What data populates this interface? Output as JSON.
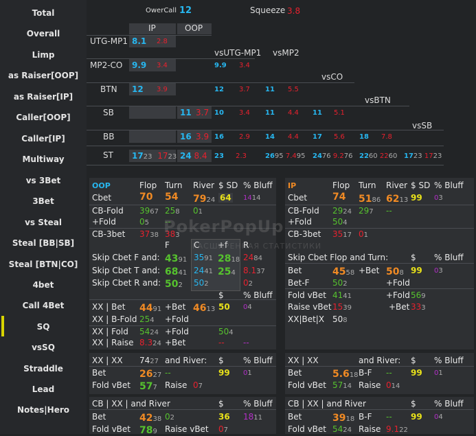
{
  "sidebar": {
    "items": [
      "Total",
      "Overall",
      "Limp",
      "as Raiser[OOP]",
      "as Raiser[IP]",
      "Caller[OOP]",
      "Caller[IP]",
      "Multiway",
      "vs 3Bet",
      "3Bet",
      "vs Steal",
      "Steal [BB|SB]",
      "Steal [BTN|CO]",
      "4bet",
      "Call 4Bet",
      "SQ",
      "vsSQ",
      "Straddle",
      "Lead",
      "Notes|Hero"
    ],
    "selected": "SQ"
  },
  "top": {
    "overcall_label": "OwerCall",
    "overcall_val": "12",
    "squeeze_label": "Squeeze",
    "squeeze_val": "3.8"
  },
  "ip_oop": {
    "ip": "IP",
    "oop": "OOP"
  },
  "positions": [
    "UTG-MP1",
    "MP2-CO",
    "BTN",
    "SB",
    "BB",
    "ST"
  ],
  "vs_headers": [
    "vsUTG-MP1",
    "vsMP2",
    "vsCO",
    "vsBTN",
    "vsSB"
  ],
  "grid": {
    "utg_ip": [
      "8.1",
      "2.8"
    ],
    "mp2_ip": [
      "9.9",
      "3.4"
    ],
    "mp2_vs1": [
      "9.9",
      "3.4"
    ],
    "btn_ip": [
      "12",
      "3.9"
    ],
    "btn_vs1": [
      "12",
      "3.7"
    ],
    "btn_vs2": [
      "11",
      "5.5"
    ],
    "sb_oop": [
      "11",
      "3.7"
    ],
    "sb_vs1": [
      "10",
      "3.4"
    ],
    "sb_vs2": [
      "11",
      "4.4"
    ],
    "sb_vs3": [
      "11",
      "5.1"
    ],
    "bb_oop": [
      "16",
      "3.9"
    ],
    "bb_vs1": [
      "16",
      "2.9"
    ],
    "bb_vs2": [
      "14",
      "4.4"
    ],
    "bb_vs3": [
      "17",
      "5.6"
    ],
    "bb_vs4": [
      "18",
      "7.8"
    ],
    "st_ip": [
      "17",
      "23",
      "17",
      "23"
    ],
    "st_oop": [
      "24",
      "8.4"
    ],
    "st_vs1": [
      "23",
      "2.3"
    ],
    "st_vs2": [
      "26",
      "95",
      "7.4",
      "95"
    ],
    "st_vs3": [
      "24",
      "76",
      "9.2",
      "76"
    ],
    "st_vs4": [
      "22",
      "60",
      "22",
      "60"
    ],
    "st_vs5": [
      "17",
      "23",
      "17",
      "23"
    ]
  },
  "oop": {
    "title": "OOP",
    "h_flop": "Flop",
    "h_turn": "Turn",
    "h_river": "River",
    "h_sd": "$ SD",
    "h_bluff": "% Bluff",
    "cbet": {
      "label": "Cbet",
      "flop": "70",
      "turn": "54",
      "river": "79",
      "river_n": "24",
      "sd": "64",
      "bluff": "14",
      "bluff_n": "14"
    },
    "cbfold": {
      "label": "CB-Fold",
      "flop": "39",
      "flop_n": "67",
      "turn": "25",
      "turn_n": "8",
      "river": "0",
      "river_n": "1"
    },
    "plusfold": {
      "label": "+Fold",
      "flop": "0",
      "flop_n": "5",
      "turn": "--"
    },
    "cb3bet": {
      "label": "CB-3bet",
      "flop": "37",
      "flop_n": "38",
      "turn": "38",
      "turn_n": "3"
    },
    "col_f": "F",
    "col_c": "C",
    "col_plusf": "+f",
    "col_r": "R",
    "skipf": {
      "label": "Skip Cbet F and:",
      "f": "43",
      "f_n": "91",
      "c": "35",
      "c_n": "91",
      "pf": "28",
      "pf_n": "18",
      "r": "24",
      "r_n": "84"
    },
    "skipt": {
      "label": "Skip Cbet T and:",
      "f": "68",
      "f_n": "41",
      "c": "24",
      "c_n": "41",
      "pf": "25",
      "pf_n": "4",
      "r": "8.1",
      "r_n": "37"
    },
    "skipr": {
      "label": "Skip Cbet R and:",
      "f": "50",
      "f_n": "2",
      "c": "50",
      "c_n": "2",
      "r": "0",
      "r_n": "2"
    },
    "xx_hdr_sd": "$",
    "xx_hdr_bluff": "% Bluff",
    "xxbet": {
      "label": "XX | Bet",
      "v": "44",
      "v_n": "91",
      "plus_label": "+Bet",
      "plus": "46",
      "plus_n": "13",
      "sd": "50",
      "bluff": "0",
      "bluff_n": "4"
    },
    "xxbfold": {
      "label": "XX | B-Fold",
      "v": "25",
      "v_n": "4",
      "plus_label": "+Fold"
    },
    "xxfold": {
      "label": "XX | Fold",
      "v": "54",
      "v_n": "24",
      "plus_label": "+Fold",
      "plus": "50",
      "plus_n": "4"
    },
    "xxraise": {
      "label": "XX | Raise",
      "v": "8.3",
      "v_n": "24",
      "plus_label": "+Bet",
      "sd": "--",
      "bluff": "--"
    },
    "xxxx": {
      "label": "XX | XX",
      "v": "74",
      "v_n": "27",
      "and_river": "and River:",
      "h_sd": "$",
      "h_bluff": "% Bluff"
    },
    "xxxx_bet": {
      "label": "Bet",
      "v": "26",
      "v_n": "27",
      "mid": "--",
      "sd": "99",
      "bluff": "0",
      "bluff_n": "1"
    },
    "xxxx_fold": {
      "label": "Fold vBet",
      "v": "57",
      "v_n": "7",
      "raise_label": "Raise",
      "raise": "0",
      "raise_n": "7"
    },
    "cbxx": {
      "label": "CB | XX | and River",
      "h_sd": "$",
      "h_bluff": "% Bluff"
    },
    "cbxx_bet": {
      "label": "Bet",
      "v": "42",
      "v_n": "38",
      "mid": "0",
      "mid_n": "2",
      "sd": "36",
      "bluff": "18",
      "bluff_n": "11"
    },
    "cbxx_fold": {
      "label": "Fold vBet",
      "v": "78",
      "v_n": "9",
      "raise_label": "Raise vBet",
      "raise": "0",
      "raise_n": "7"
    }
  },
  "ip": {
    "title": "IP",
    "h_flop": "Flop",
    "h_turn": "Turn",
    "h_river": "River",
    "h_sd": "$ SD",
    "h_bluff": "% Bluff",
    "cbet": {
      "label": "Cbet",
      "flop": "74",
      "turn": "51",
      "turn_n": "86",
      "river": "62",
      "river_n": "13",
      "sd": "99",
      "bluff": "0",
      "bluff_n": "3"
    },
    "cbfold": {
      "label": "CB-Fold",
      "flop": "29",
      "flop_n": "24",
      "turn": "29",
      "turn_n": "7",
      "river": "--"
    },
    "plusfold": {
      "label": "+Fold",
      "flop": "50",
      "flop_n": "4"
    },
    "cb3bet": {
      "label": "CB-3bet",
      "flop": "35",
      "flop_n": "17",
      "turn": "0",
      "turn_n": "1"
    },
    "skip": {
      "label": "Skip Cbet Flop and Turn:",
      "h_sd": "$",
      "h_bluff": "% Bluff"
    },
    "skipbet": {
      "label": "Bet",
      "v": "45",
      "v_n": "58",
      "plus_label": "+Bet",
      "plus": "50",
      "plus_n": "8",
      "sd": "99",
      "bluff": "0",
      "bluff_n": "3"
    },
    "skipbf": {
      "label": "Bet-F",
      "v": "50",
      "v_n": "2",
      "plus_label": "+Fold"
    },
    "foldvbet": {
      "label": "Fold vBet",
      "v": "41",
      "v_n": "41",
      "plus_label": "+Fold",
      "plus": "56",
      "plus_n": "9"
    },
    "raisevbet": {
      "label": "Raise vBet",
      "v": "15",
      "v_n": "39",
      "plus_label": "+Bet",
      "plus": "33",
      "plus_n": "3"
    },
    "xxbetx": {
      "label": "XX|Bet|X",
      "v": "50",
      "v_n": "8"
    },
    "xxxx": {
      "label": "XX | XX",
      "and_river": "and River:",
      "h_sd": "$",
      "h_bluff": "% Bluff"
    },
    "xxxx_bet": {
      "label": "Bet",
      "v": "5.6",
      "v_n": "18",
      "mid_label": "B-F",
      "mid": "--",
      "sd": "99",
      "bluff": "0",
      "bluff_n": "1"
    },
    "xxxx_fold": {
      "label": "Fold vBet",
      "v": "57",
      "v_n": "14",
      "raise_label": "Raise",
      "raise": "0",
      "raise_n": "14"
    },
    "cbxx": {
      "label": "CB | XX | and River",
      "h_sd": "$",
      "h_bluff": "% Bluff"
    },
    "cbxx_bet": {
      "label": "Bet",
      "v": "39",
      "v_n": "18",
      "mid_label": "B-F",
      "mid": "--",
      "sd": "99",
      "bluff": "0",
      "bluff_n": "4"
    },
    "cbxx_fold": {
      "label": "Fold vBet",
      "v": "54",
      "v_n": "24",
      "raise_label": "Raise",
      "raise": "9.1",
      "raise_n": "22"
    }
  },
  "watermark": {
    "line1": "PokerPopUp",
    "line2": "РАСШИРЕННАЯ СТАТИСТИКИ"
  },
  "colors": {
    "cyan": "#27b7f0",
    "red": "#e8212e",
    "orange": "#f08a24",
    "green": "#56c22e",
    "yellow": "#e8e11a",
    "purple": "#b32fc8",
    "selected": "#d8d400"
  }
}
